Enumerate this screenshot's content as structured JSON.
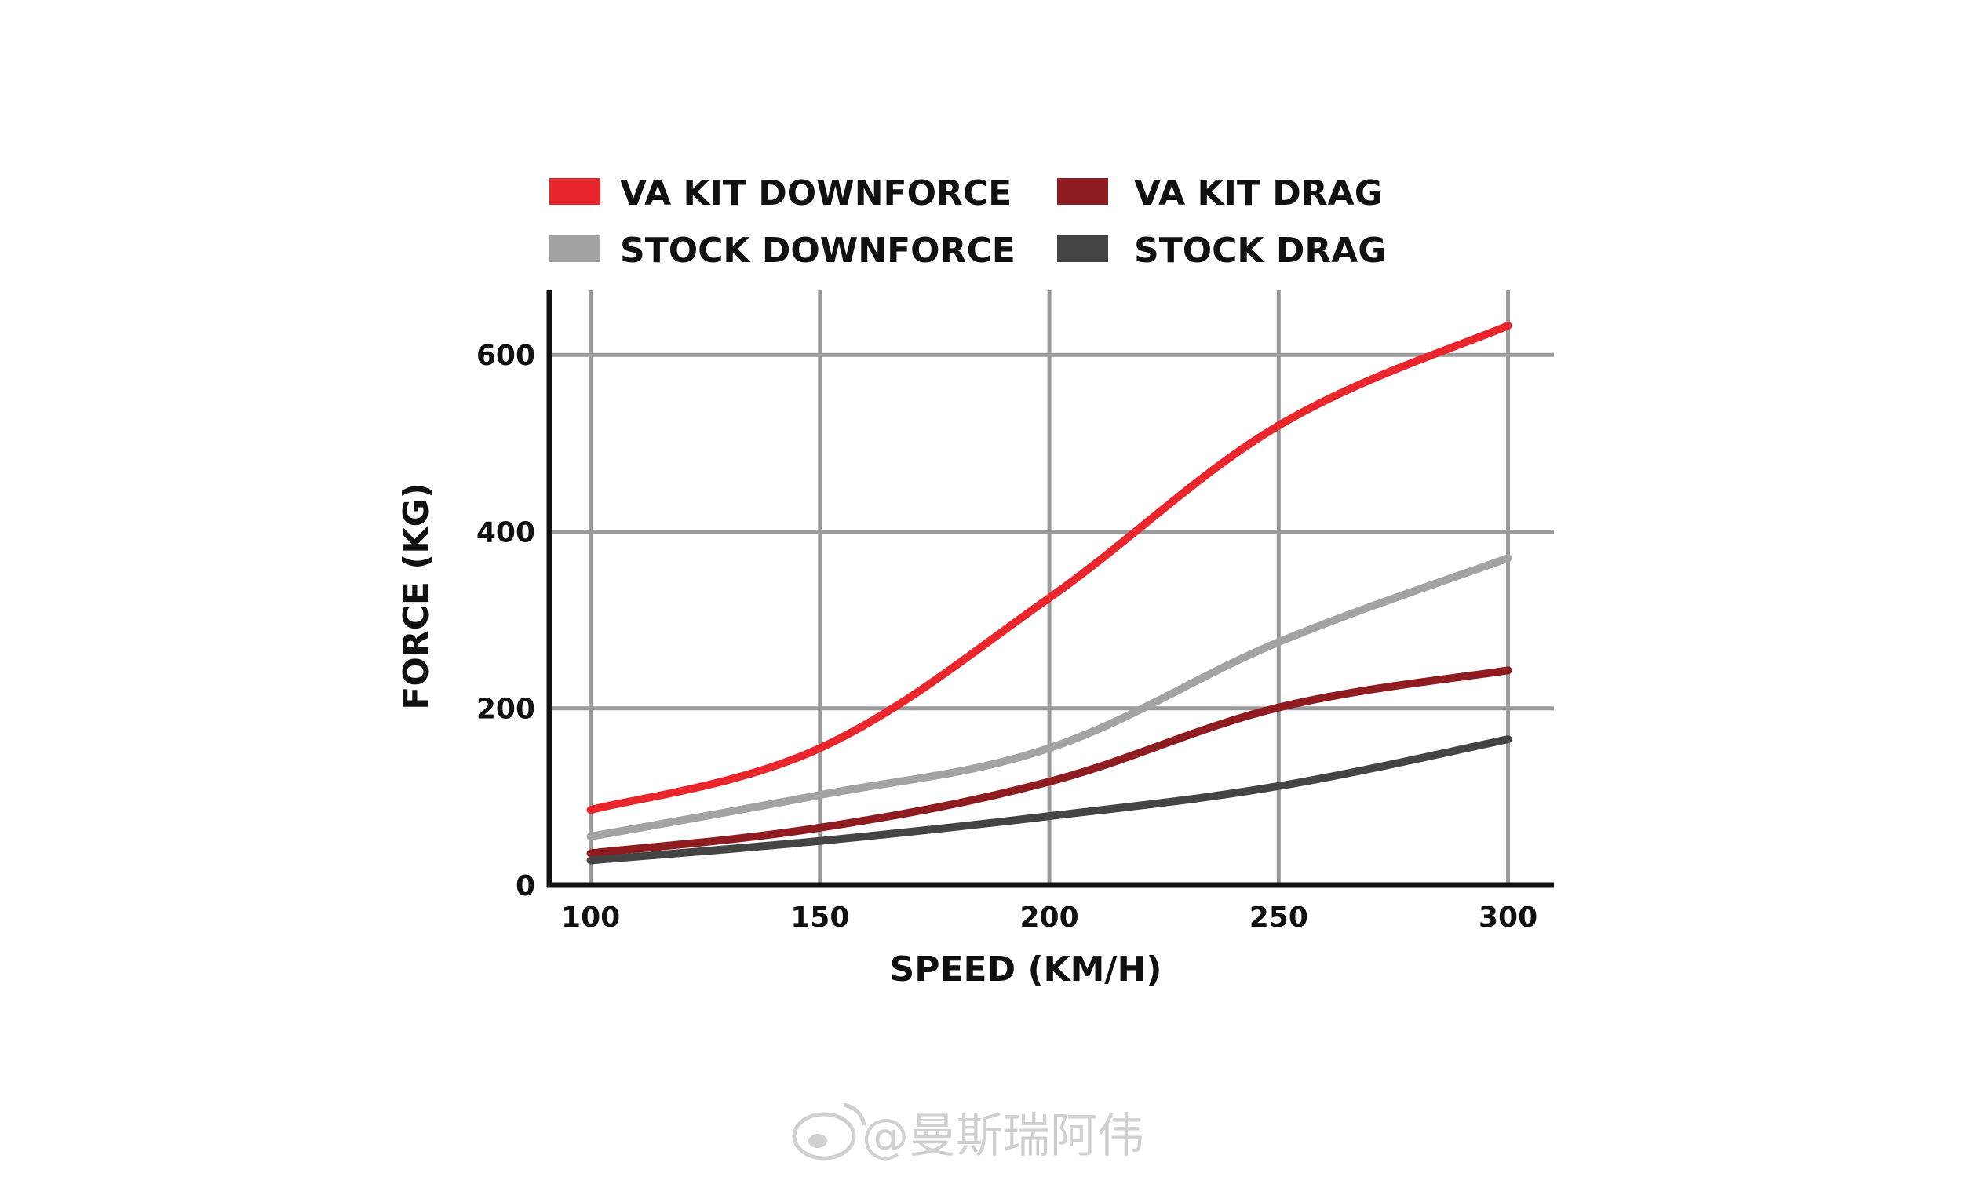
{
  "chart_data": {
    "type": "line",
    "title": "",
    "xlabel": "SPEED (KM/H)",
    "ylabel": "FORCE (KG)",
    "x": [
      100,
      150,
      200,
      250,
      300
    ],
    "x_ticks": [
      "100",
      "150",
      "200",
      "250",
      "300"
    ],
    "y_ticks": [
      "0",
      "200",
      "400",
      "600"
    ],
    "xlim": [
      91,
      310
    ],
    "ylim": [
      0,
      673
    ],
    "grid": true,
    "legend_position": "top",
    "series": [
      {
        "name": "VA KIT DOWNFORCE",
        "color": "#e8262b",
        "values": [
          85,
          155,
          325,
          520,
          633
        ]
      },
      {
        "name": "VA KIT DRAG",
        "color": "#8e1c21",
        "values": [
          36,
          65,
          117,
          201,
          243
        ]
      },
      {
        "name": "STOCK DOWNFORCE",
        "color": "#a3a3a3",
        "values": [
          55,
          102,
          155,
          275,
          370
        ]
      },
      {
        "name": "STOCK DRAG",
        "color": "#444444",
        "values": [
          28,
          50,
          78,
          112,
          165
        ]
      }
    ]
  },
  "watermark": "@曼斯瑞阿伟"
}
